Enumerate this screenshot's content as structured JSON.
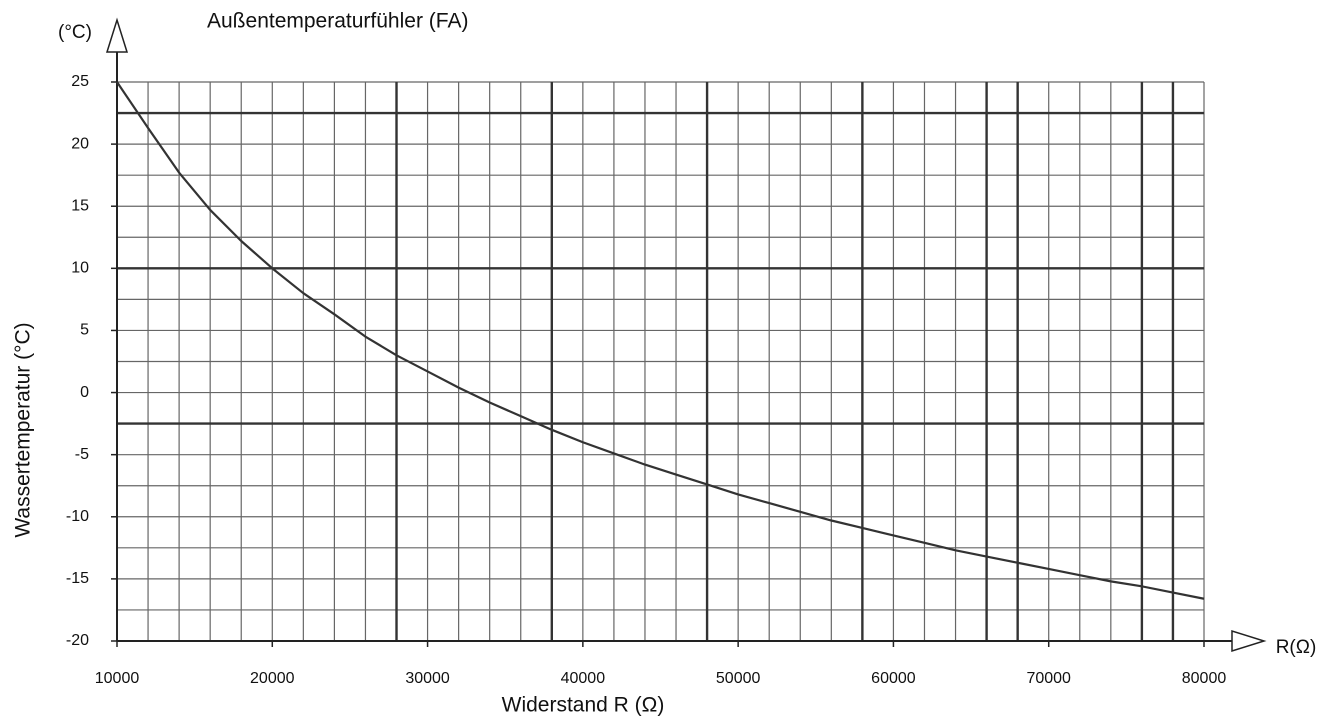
{
  "chart_data": {
    "type": "line",
    "title": "Außentemperaturfühler (FA)",
    "y_unit_label": "(°C)",
    "x_unit_label": "R(Ω)",
    "x_label": "Widerstand R (Ω)",
    "y_label": "Wassertemperatur (°C)",
    "x": [
      10000,
      12000,
      14000,
      16000,
      18000,
      20000,
      22000,
      24000,
      26000,
      28000,
      30000,
      32000,
      34000,
      36000,
      38000,
      40000,
      42000,
      44000,
      46000,
      48000,
      50000,
      52000,
      54000,
      56000,
      58000,
      60000,
      62000,
      64000,
      66000,
      68000,
      70000,
      72000,
      74000,
      76000,
      78000,
      80000
    ],
    "series": [
      {
        "color": "#333333",
        "values": [
          25,
          21.3,
          17.7,
          14.7,
          12.2,
          10,
          8,
          6.3,
          4.5,
          3,
          1.7,
          0.4,
          -0.8,
          -1.9,
          -3,
          -4,
          -4.9,
          -5.8,
          -6.6,
          -7.4,
          -8.2,
          -8.9,
          -9.6,
          -10.3,
          -10.9,
          -11.5,
          -12.1,
          -12.7,
          -13.2,
          -13.7,
          -14.2,
          -14.7,
          -15.2,
          -15.6,
          -16.1,
          -16.6
        ]
      }
    ],
    "xlim": [
      10000,
      80000
    ],
    "ylim": [
      -20,
      25
    ],
    "xticks": [
      10000,
      20000,
      30000,
      40000,
      50000,
      60000,
      70000,
      80000
    ],
    "yticks": [
      -20,
      -15,
      -10,
      -5,
      0,
      5,
      10,
      15,
      20,
      25
    ],
    "x_gridlines": [
      12000,
      14000,
      16000,
      18000,
      20000,
      22000,
      24000,
      26000,
      28000,
      30000,
      32000,
      34000,
      36000,
      38000,
      40000,
      42000,
      44000,
      46000,
      48000,
      50000,
      52000,
      54000,
      56000,
      58000,
      60000,
      62000,
      64000,
      66000,
      68000,
      70000,
      72000,
      74000,
      76000,
      78000,
      80000
    ],
    "y_gridlines": [
      -17.5,
      -15,
      -12.5,
      -10,
      -7.5,
      -5,
      -2.5,
      0,
      2.5,
      5,
      7.5,
      10,
      12.5,
      15,
      17.5,
      20,
      22.5,
      25
    ],
    "thick_x_gridlines": [
      28000,
      38000,
      48000,
      58000,
      66000,
      68000,
      76000,
      78000
    ],
    "thick_y_gridlines": [
      22.5,
      10,
      -2.5
    ],
    "grid": true
  }
}
